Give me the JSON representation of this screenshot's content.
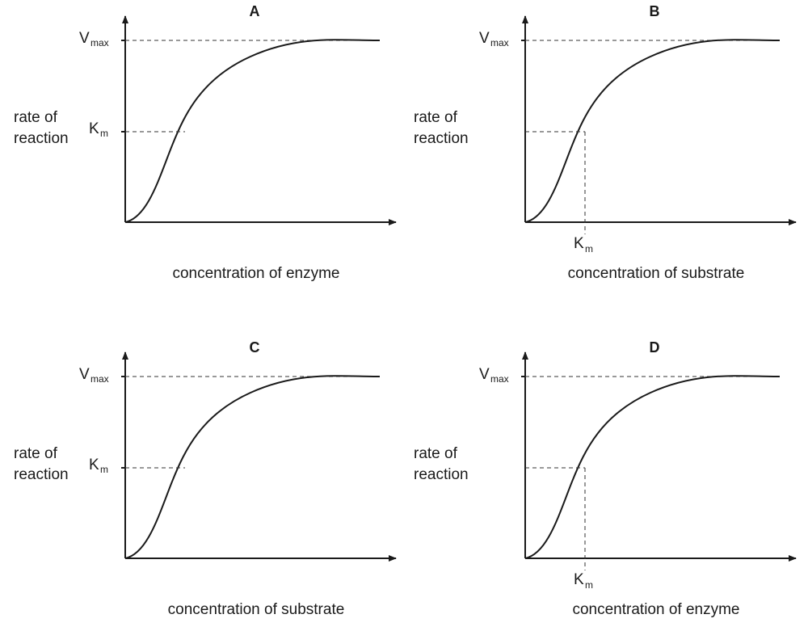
{
  "panels": [
    {
      "letter": "A",
      "y_label_lines": [
        "rate of",
        "reaction"
      ],
      "x_label": "concentration of enzyme",
      "vmax": {
        "symbol": "V",
        "subscript": "max"
      },
      "km": {
        "symbol": "K",
        "subscript": "m"
      },
      "km_axis": "y"
    },
    {
      "letter": "B",
      "y_label_lines": [
        "rate of",
        "reaction"
      ],
      "x_label": "concentration of substrate",
      "vmax": {
        "symbol": "V",
        "subscript": "max"
      },
      "km": {
        "symbol": "K",
        "subscript": "m"
      },
      "km_axis": "x"
    },
    {
      "letter": "C",
      "y_label_lines": [
        "rate of",
        "reaction"
      ],
      "x_label": "concentration of substrate",
      "vmax": {
        "symbol": "V",
        "subscript": "max"
      },
      "km": {
        "symbol": "K",
        "subscript": "m"
      },
      "km_axis": "y"
    },
    {
      "letter": "D",
      "y_label_lines": [
        "rate of",
        "reaction"
      ],
      "x_label": "concentration of enzyme",
      "vmax": {
        "symbol": "V",
        "subscript": "max"
      },
      "km": {
        "symbol": "K",
        "subscript": "m"
      },
      "km_axis": "x"
    }
  ]
}
